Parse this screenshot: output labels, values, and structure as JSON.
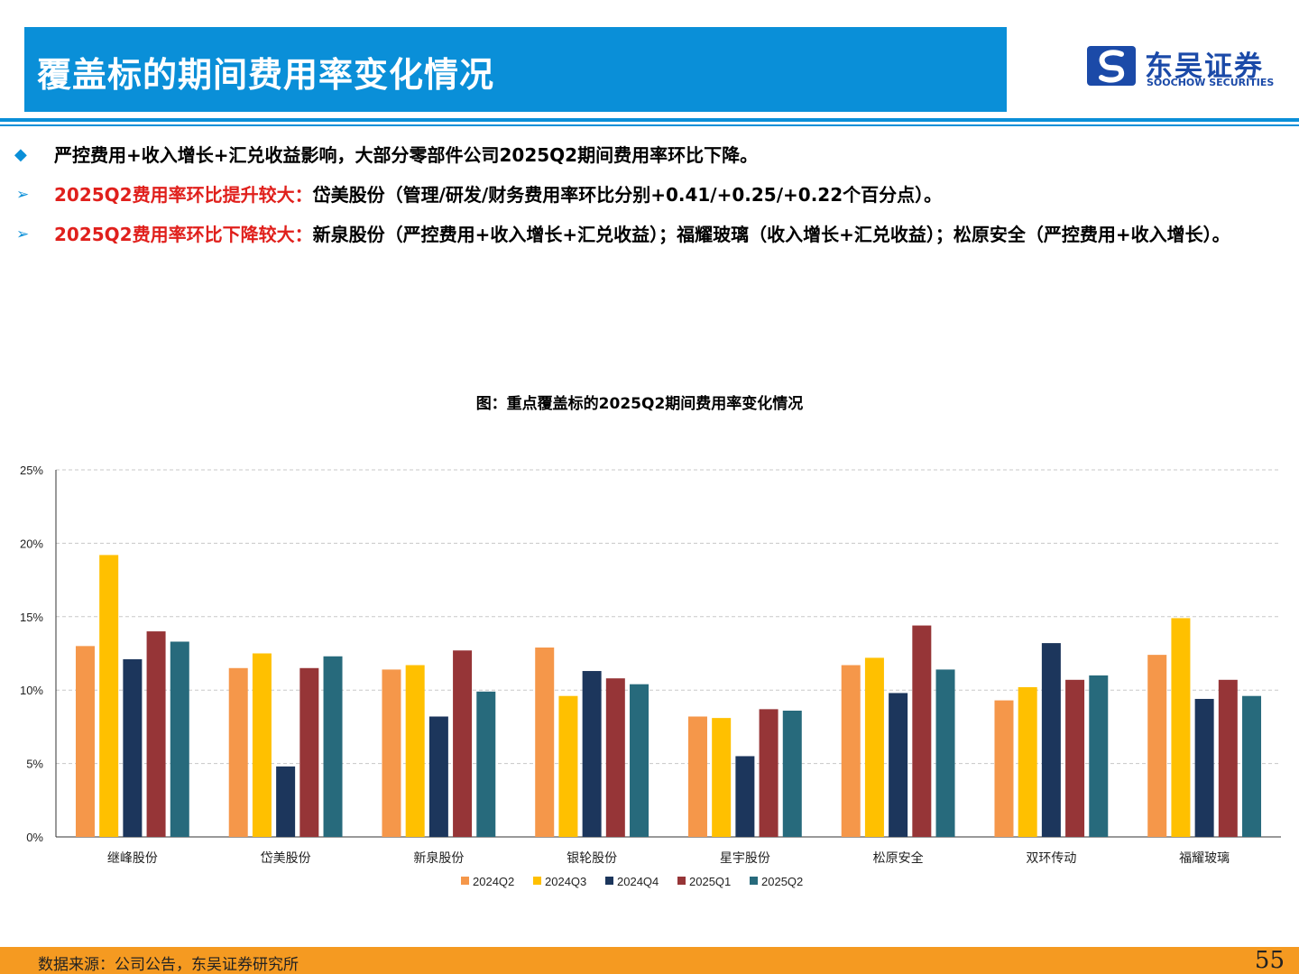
{
  "header": {
    "title": "覆盖标的期间费用率变化情况",
    "logo_cn": "东吴证券",
    "logo_en": "SOOCHOW SECURITIES"
  },
  "bullets": {
    "b1_text": "严控费用+收入增长+汇兑收益影响，大部分零部件公司2025Q2期间费用率环比下降。",
    "b2_red": "2025Q2费用率环比提升较大：",
    "b2_text": "岱美股份（管理/研发/财务费用率环比分别+0.41/+0.25/+0.22个百分点）。",
    "b3_red": "2025Q2费用率环比下降较大：",
    "b3_text": "新泉股份（严控费用+收入增长+汇兑收益）；福耀玻璃（收入增长+汇兑收益）；松原安全（严控费用+收入增长）。"
  },
  "chart_data": {
    "type": "bar",
    "title": "图：重点覆盖标的2025Q2期间费用率变化情况",
    "categories": [
      "继峰股份",
      "岱美股份",
      "新泉股份",
      "银轮股份",
      "星宇股份",
      "松原安全",
      "双环传动",
      "福耀玻璃"
    ],
    "series": [
      {
        "name": "2024Q2",
        "color": "#f5974a",
        "values": [
          13.0,
          11.5,
          11.4,
          12.9,
          8.2,
          11.7,
          9.3,
          12.4
        ]
      },
      {
        "name": "2024Q3",
        "color": "#ffc000",
        "values": [
          19.2,
          12.5,
          11.7,
          9.6,
          8.1,
          12.2,
          10.2,
          14.9
        ]
      },
      {
        "name": "2024Q4",
        "color": "#1c365c",
        "values": [
          12.1,
          4.8,
          8.2,
          11.3,
          5.5,
          9.8,
          13.2,
          9.4
        ]
      },
      {
        "name": "2025Q1",
        "color": "#963537",
        "values": [
          14.0,
          11.5,
          12.7,
          10.8,
          8.7,
          14.4,
          10.7,
          10.7
        ]
      },
      {
        "name": "2025Q2",
        "color": "#276a7c",
        "values": [
          13.3,
          12.3,
          9.9,
          10.4,
          8.6,
          11.4,
          11.0,
          9.6
        ]
      }
    ],
    "ylim": [
      0,
      25
    ],
    "yticks": [
      "0%",
      "5%",
      "10%",
      "15%",
      "20%",
      "25%"
    ],
    "grid": true,
    "legend": "bottom"
  },
  "footer": {
    "source": "数据来源：公司公告，东吴证券研究所",
    "page": "55"
  }
}
